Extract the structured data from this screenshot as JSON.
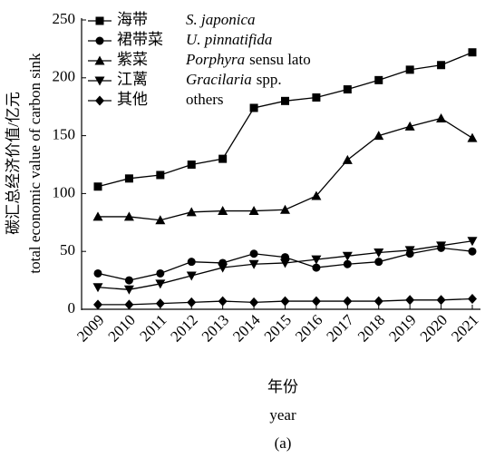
{
  "chart_data": {
    "type": "line",
    "ylabel": [
      "碳汇总经济价值/亿元",
      "total economic value of carbon sink"
    ],
    "xlabel": [
      "年份",
      "year"
    ],
    "caption": "(a)",
    "categories": [
      "2009",
      "2010",
      "2011",
      "2012",
      "2013",
      "2014",
      "2015",
      "2016",
      "2017",
      "2018",
      "2019",
      "2020",
      "2021"
    ],
    "series": [
      {
        "name": "海带",
        "name_latin": "S. japonica",
        "marker": "square",
        "color": "#000000",
        "values": [
          106,
          113,
          116,
          125,
          130,
          174,
          180,
          183,
          190,
          198,
          207,
          211,
          222
        ]
      },
      {
        "name": "裙带菜",
        "name_latin": "U. pinnatifida",
        "marker": "circle",
        "color": "#000000",
        "values": [
          31,
          25,
          31,
          41,
          40,
          48,
          45,
          36,
          39,
          41,
          48,
          53,
          50
        ]
      },
      {
        "name": "紫菜",
        "name_latin": "Porphyra",
        "name_note": "sensu lato",
        "marker": "triangle-up",
        "color": "#000000",
        "values": [
          80,
          80,
          77,
          84,
          85,
          85,
          86,
          98,
          129,
          150,
          158,
          165,
          148
        ]
      },
      {
        "name": "江蓠",
        "name_latin": "Gracilaria",
        "name_note": "spp.",
        "marker": "triangle-down",
        "color": "#000000",
        "values": [
          19,
          17,
          22,
          29,
          36,
          39,
          40,
          43,
          46,
          49,
          51,
          55,
          59
        ]
      },
      {
        "name": "其他",
        "name_note": "others",
        "marker": "diamond",
        "color": "#000000",
        "values": [
          4,
          4,
          5,
          6,
          7,
          6,
          7,
          7,
          7,
          7,
          8,
          8,
          9
        ]
      }
    ],
    "ylim": [
      0,
      250
    ],
    "yticks": [
      0,
      50,
      100,
      150,
      200,
      250
    ]
  }
}
